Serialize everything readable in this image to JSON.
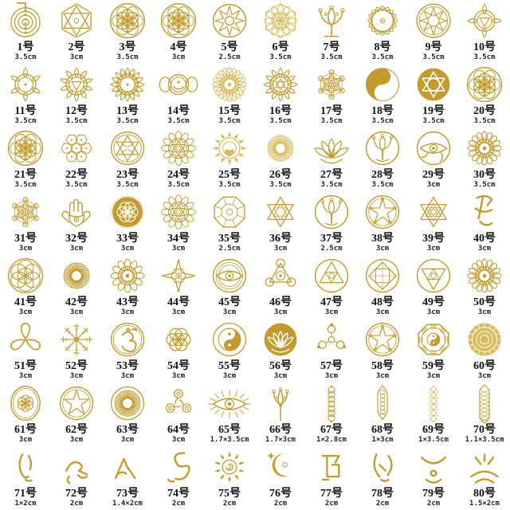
{
  "palette": {
    "gold": "#C29A2E",
    "gold_light": "#D8BB5C",
    "text": "#111111",
    "background": "#FFFFFF"
  },
  "grid": {
    "columns": 10,
    "rows": 8,
    "item_count": 80
  },
  "items": [
    {
      "number": "1号",
      "size": "3.5cm",
      "symbol": "cho-ku-rei-spiral",
      "shape": "spiral"
    },
    {
      "number": "2号",
      "size": "3cm",
      "symbol": "hexagram-icosahedron",
      "shape": "hexstar",
      "v": "hex"
    },
    {
      "number": "3号",
      "size": "3.5cm",
      "symbol": "flower-of-life",
      "shape": "fol"
    },
    {
      "number": "4号",
      "size": "3cm",
      "symbol": "flower-of-life-dense",
      "shape": "fol"
    },
    {
      "number": "5号",
      "size": "2.5cm",
      "symbol": "eight-point-star",
      "shape": "star8"
    },
    {
      "number": "6号",
      "size": "3.5cm",
      "symbol": "lotus-flower-of-life",
      "shape": "mandalaFol",
      "tone": "light"
    },
    {
      "number": "7号",
      "size": "3.5cm",
      "symbol": "tree-of-life",
      "shape": "tree"
    },
    {
      "number": "8号",
      "size": "3.5cm",
      "symbol": "rotating-squares-mandala",
      "shape": "rotsquares"
    },
    {
      "number": "9号",
      "size": "3.5cm",
      "symbol": "star-circle-mandala",
      "shape": "starcircle"
    },
    {
      "number": "10号",
      "size": "3.5cm",
      "symbol": "root-chakra",
      "shape": "chakra",
      "v": 4
    },
    {
      "number": "11号",
      "size": "3.5cm",
      "symbol": "sacral-chakra",
      "shape": "chakra",
      "v": 6
    },
    {
      "number": "12号",
      "size": "3.5cm",
      "symbol": "solar-plexus-chakra",
      "shape": "chakra",
      "v": 10
    },
    {
      "number": "13号",
      "size": "3.5cm",
      "symbol": "throat-chakra",
      "shape": "chakra",
      "v": 16
    },
    {
      "number": "14号",
      "size": "3.5cm",
      "symbol": "third-eye-chakra",
      "shape": "chakraEye"
    },
    {
      "number": "15号",
      "size": "3.5cm",
      "symbol": "crown-chakra",
      "shape": "mandala",
      "v": 20,
      "tone": "light"
    },
    {
      "number": "16号",
      "size": "3.5cm",
      "symbol": "heart-chakra",
      "shape": "chakra",
      "v": 12
    },
    {
      "number": "17号",
      "size": "3.5cm",
      "symbol": "metatrons-cube",
      "shape": "metatron"
    },
    {
      "number": "18号",
      "size": "3.5cm",
      "symbol": "yin-yang-flower-of-life",
      "shape": "yinyangSolid"
    },
    {
      "number": "19号",
      "size": "3.5cm",
      "symbol": "merkaba-star-disc",
      "shape": "hexstarDisc"
    },
    {
      "number": "20号",
      "size": "3.5cm",
      "symbol": "flower-of-life-variant",
      "shape": "fol"
    },
    {
      "number": "21号",
      "size": "3.5cm",
      "symbol": "flower-of-life-circle",
      "shape": "fol"
    },
    {
      "number": "22号",
      "size": "3.5cm",
      "symbol": "honeycomb-flowers",
      "shape": "honeycomb"
    },
    {
      "number": "23号",
      "size": "3.5cm",
      "symbol": "swirl-hexagram-circle",
      "shape": "magicstar6"
    },
    {
      "number": "24号",
      "size": "3.5cm",
      "symbol": "hexagram-mandala",
      "shape": "mandalaStar"
    },
    {
      "number": "25号",
      "size": "3.5cm",
      "symbol": "sun-heart-mandala",
      "shape": "sunMandala",
      "tone": "light"
    },
    {
      "number": "26号",
      "size": "3.5cm",
      "symbol": "torus-sunflower",
      "shape": "torus",
      "tone": "light"
    },
    {
      "number": "27号",
      "size": "3.5cm",
      "symbol": "om-lotus-cluster",
      "shape": "lotus"
    },
    {
      "number": "28号",
      "size": "3.5cm",
      "symbol": "tree-of-life-circle",
      "shape": "treeCircle"
    },
    {
      "number": "29号",
      "size": "3cm",
      "symbol": "eye-of-horus-circle",
      "shape": "eyeCircle"
    },
    {
      "number": "30号",
      "size": "3.5cm",
      "symbol": "ornate-compass-mandala",
      "shape": "mandala",
      "v": 16
    },
    {
      "number": "31号",
      "size": "3cm",
      "symbol": "metatrons-cube-small",
      "shape": "metatron"
    },
    {
      "number": "32号",
      "size": "3cm",
      "symbol": "hamsa-hand",
      "shape": "hamsa"
    },
    {
      "number": "33号",
      "size": "3cm",
      "symbol": "flower-of-life-solid",
      "shape": "folSolid"
    },
    {
      "number": "34号",
      "size": "3cm",
      "symbol": "sri-yantra-mandala",
      "shape": "mandalaStar"
    },
    {
      "number": "35号",
      "size": "2.5cm",
      "symbol": "faceted-gem-circle",
      "shape": "gem"
    },
    {
      "number": "36号",
      "size": "3cm",
      "symbol": "hexagram-lattice",
      "shape": "hexstar"
    },
    {
      "number": "37号",
      "size": "2.5cm",
      "symbol": "celtic-tree-knot",
      "shape": "treeCircle"
    },
    {
      "number": "38号",
      "size": "3cm",
      "symbol": "magic-circle-pentagram",
      "shape": "magicstar5"
    },
    {
      "number": "39号",
      "size": "3cm",
      "symbol": "tetrahedron-grid-star",
      "shape": "hexstar",
      "v": "lattice"
    },
    {
      "number": "40号",
      "size": "3cm",
      "symbol": "reiki-sigil",
      "shape": "glyph",
      "v": 0
    },
    {
      "number": "41号",
      "size": "3cm",
      "symbol": "seed-of-life",
      "shape": "seed"
    },
    {
      "number": "42号",
      "size": "3cm",
      "symbol": "torus-spiral",
      "shape": "torus"
    },
    {
      "number": "43号",
      "size": "3cm",
      "symbol": "petal-mandala",
      "shape": "mandala",
      "v": 12
    },
    {
      "number": "44号",
      "size": "3cm",
      "symbol": "star-hexagon-eye",
      "shape": "starhex"
    },
    {
      "number": "45号",
      "size": "3cm",
      "symbol": "concentric-eye",
      "shape": "eyeCircle",
      "v": "plain"
    },
    {
      "number": "46号",
      "size": "3cm",
      "symbol": "alchemy-triangle-circles",
      "shape": "alchemyTriangle"
    },
    {
      "number": "47号",
      "size": "3cm",
      "symbol": "triangle-geometry-circle",
      "shape": "triangleCircle"
    },
    {
      "number": "48号",
      "size": "3cm",
      "symbol": "square-mandala-circle",
      "shape": "squareCircle"
    },
    {
      "number": "49号",
      "size": "3cm",
      "symbol": "inverted-triangle-circle",
      "shape": "triangleCircle",
      "v": "down"
    },
    {
      "number": "50号",
      "size": "3cm",
      "symbol": "star-eye-mandala",
      "shape": "mandala",
      "v": 16
    },
    {
      "number": "51号",
      "size": "3cm",
      "symbol": "triquetra-knot",
      "shape": "triquetra"
    },
    {
      "number": "52号",
      "size": "3cm",
      "symbol": "vegvisir-compass",
      "shape": "vegvisir"
    },
    {
      "number": "53号",
      "size": "3cm",
      "symbol": "om-lace-circle",
      "shape": "omCircle"
    },
    {
      "number": "54号",
      "size": "3cm",
      "symbol": "flower-of-life-cluster",
      "shape": "fol",
      "v": "cluster"
    },
    {
      "number": "55号",
      "size": "3cm",
      "symbol": "yin-yang-lace-ring",
      "shape": "yinyangRing"
    },
    {
      "number": "56号",
      "size": "3cm",
      "symbol": "lotus-disc",
      "shape": "lotusDisc"
    },
    {
      "number": "57号",
      "size": "3cm",
      "symbol": "trinity-arrow-wheel",
      "shape": "triskArrows"
    },
    {
      "number": "58号",
      "size": "3cm",
      "symbol": "pentagram-taiji-circle",
      "shape": "magicstar5"
    },
    {
      "number": "59号",
      "size": "3cm",
      "symbol": "bagua-yin-yang",
      "shape": "bagua"
    },
    {
      "number": "60号",
      "size": "3cm",
      "symbol": "ornate-seal-disc",
      "shape": "sealDisc",
      "tone": "light"
    },
    {
      "number": "61号",
      "size": "3cm",
      "symbol": "flower-of-life-oval",
      "shape": "folOval"
    },
    {
      "number": "62号",
      "size": "3cm",
      "symbol": "pentagram-rune-circle",
      "shape": "magicstar5",
      "v": "plain"
    },
    {
      "number": "63号",
      "size": "3cm",
      "symbol": "sphere-magic-circle",
      "shape": "torus",
      "v": "ring"
    },
    {
      "number": "64号",
      "size": "3cm",
      "symbol": "triple-spiral-triskelion",
      "shape": "triskelion"
    },
    {
      "number": "65号",
      "size": "1.7×3.5cm",
      "symbol": "radiant-eye",
      "shape": "eyeRays"
    },
    {
      "number": "66号",
      "size": "1.7×3cm",
      "symbol": "slender-tree",
      "shape": "treeTall"
    },
    {
      "number": "67号",
      "size": "1×2.8cm",
      "symbol": "circle-chain-strip",
      "shape": "stripCircles"
    },
    {
      "number": "68号",
      "size": "1×3cm",
      "symbol": "flower-of-life-strip",
      "shape": "stripFol"
    },
    {
      "number": "69号",
      "size": "1×3.5cm",
      "symbol": "lace-diamond-strip",
      "shape": "stripLace",
      "tone": "light"
    },
    {
      "number": "70号",
      "size": "1.1×3.5cm",
      "symbol": "ornate-lattice-strip",
      "shape": "stripOrnate"
    },
    {
      "number": "71号",
      "size": "1×2cm",
      "symbol": "figure-sigil",
      "shape": "glyph",
      "v": 1
    },
    {
      "number": "72号",
      "size": "2cm",
      "symbol": "bird-sigil",
      "shape": "glyph",
      "v": 2
    },
    {
      "number": "73号",
      "size": "1.4×2cm",
      "symbol": "mountain-sigil",
      "shape": "glyph",
      "v": 3
    },
    {
      "number": "74号",
      "size": "2cm",
      "symbol": "serpent-spiral-sigil",
      "shape": "glyph",
      "v": 4
    },
    {
      "number": "75号",
      "size": "2cm",
      "symbol": "sun-spiral",
      "shape": "sunSpiral"
    },
    {
      "number": "76号",
      "size": "2cm",
      "symbol": "moon-star-spiral",
      "shape": "moonStar"
    },
    {
      "number": "77号",
      "size": "2cm",
      "symbol": "gate-sigil",
      "shape": "glyph",
      "v": 5
    },
    {
      "number": "78号",
      "size": "2cm",
      "symbol": "dancer-sigil",
      "shape": "glyph",
      "v": 6
    },
    {
      "number": "79号",
      "size": "2cm",
      "symbol": "crescent-figure-sigil",
      "shape": "glyph",
      "v": 7
    },
    {
      "number": "80号",
      "size": "1.5×2cm",
      "symbol": "radiant-crown-sigil",
      "shape": "glyph",
      "v": 8
    }
  ]
}
